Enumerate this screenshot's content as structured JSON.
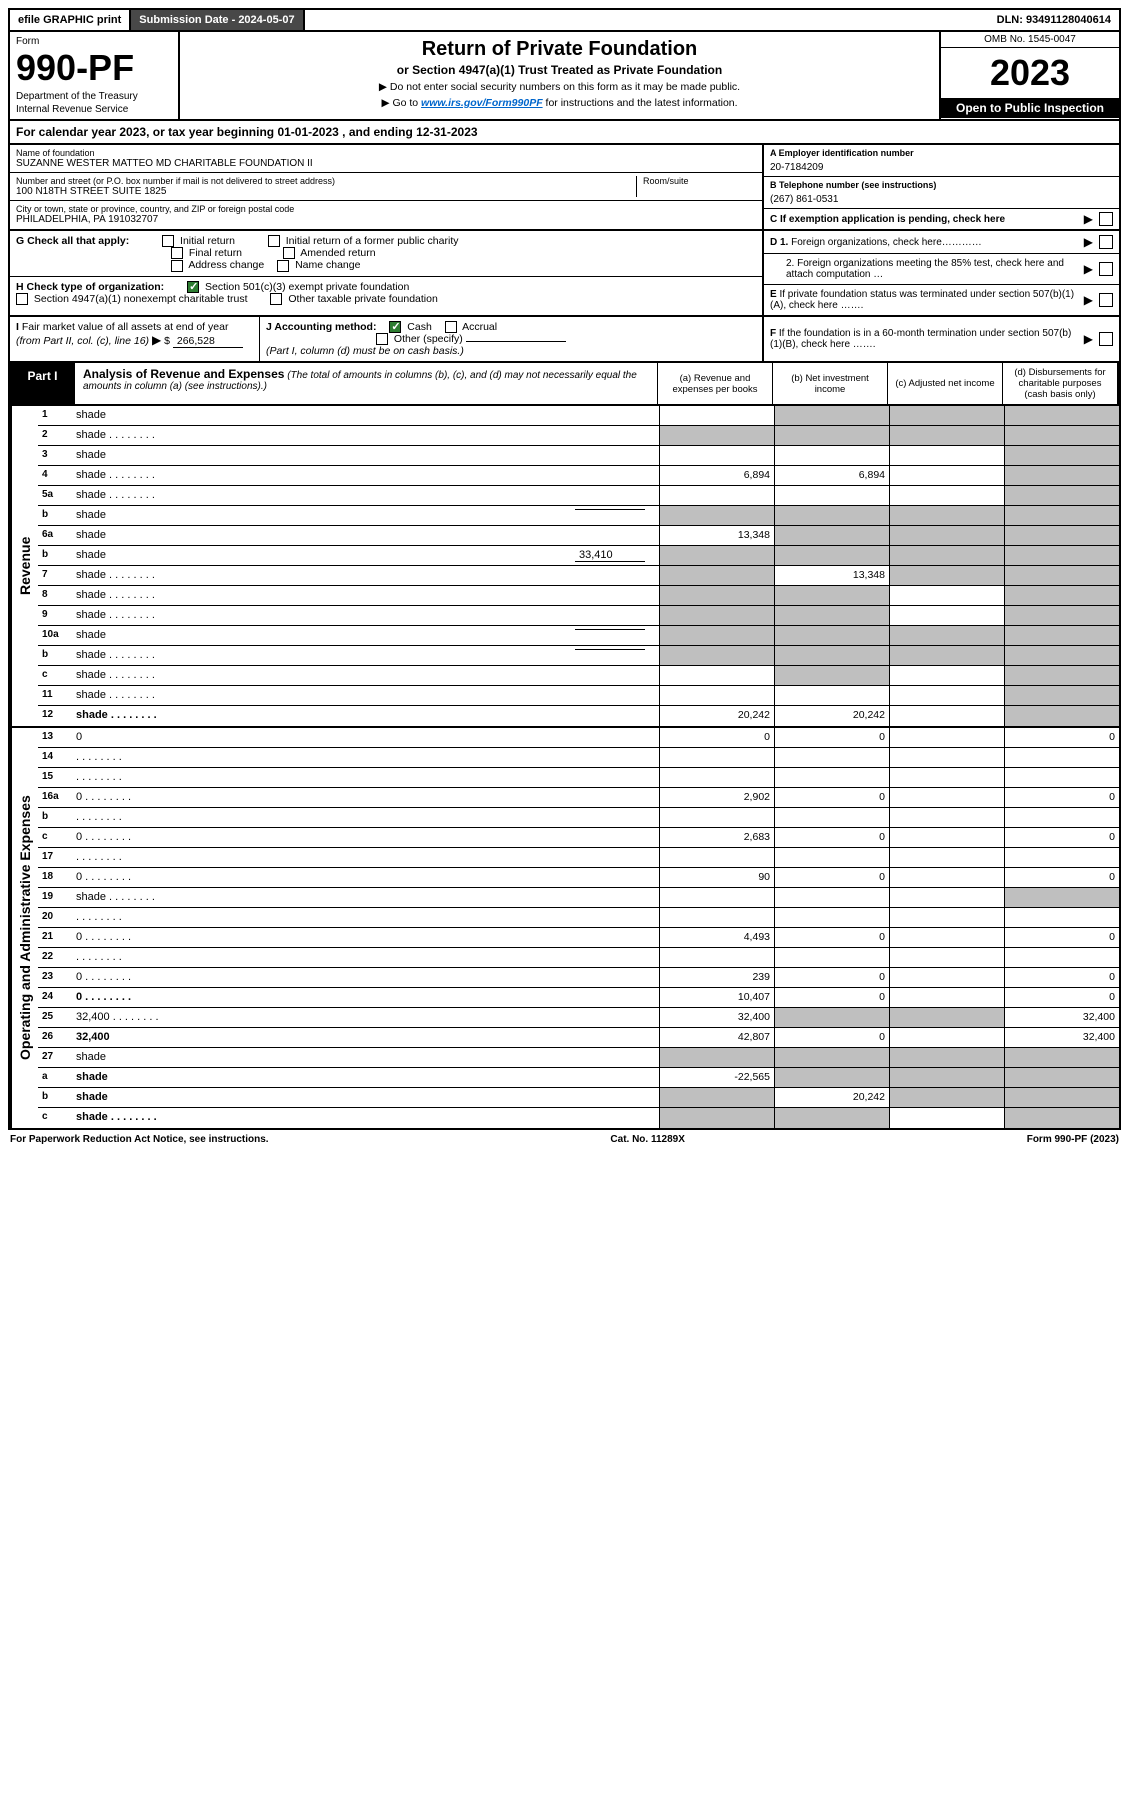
{
  "topbar": {
    "efile": "efile GRAPHIC print",
    "submission_label": "Submission Date - 2024-05-07",
    "dln": "DLN: 93491128040614"
  },
  "header": {
    "form_word": "Form",
    "form_number": "990-PF",
    "dept1": "Department of the Treasury",
    "dept2": "Internal Revenue Service",
    "title": "Return of Private Foundation",
    "subtitle": "or Section 4947(a)(1) Trust Treated as Private Foundation",
    "instr1": "▶ Do not enter social security numbers on this form as it may be made public.",
    "instr2_prefix": "▶ Go to ",
    "instr2_link": "www.irs.gov/Form990PF",
    "instr2_suffix": " for instructions and the latest information.",
    "omb": "OMB No. 1545-0047",
    "year": "2023",
    "open": "Open to Public Inspection"
  },
  "calyear": "For calendar year 2023, or tax year beginning 01-01-2023             , and ending 12-31-2023",
  "org": {
    "name_label": "Name of foundation",
    "name": "SUZANNE WESTER MATTEO MD CHARITABLE FOUNDATION II",
    "addr_label": "Number and street (or P.O. box number if mail is not delivered to street address)",
    "addr": "100 N18TH STREET SUITE 1825",
    "room_label": "Room/suite",
    "city_label": "City or town, state or province, country, and ZIP or foreign postal code",
    "city": "PHILADELPHIA, PA  191032707"
  },
  "ein": {
    "label": "A Employer identification number",
    "value": "20-7184209"
  },
  "phone": {
    "label": "B Telephone number (see instructions)",
    "value": "(267) 861-0531"
  },
  "boxC": "C If exemption application is pending, check here",
  "checkG": {
    "label": "G Check all that apply:",
    "opts": [
      "Initial return",
      "Final return",
      "Address change",
      "Initial return of a former public charity",
      "Amended return",
      "Name change"
    ]
  },
  "boxD": {
    "d1": "D 1. Foreign organizations, check here…………",
    "d2": "2. Foreign organizations meeting the 85% test, check here and attach computation …"
  },
  "checkH": {
    "label": "H Check type of organization:",
    "opt1": "Section 501(c)(3) exempt private foundation",
    "opt2": "Section 4947(a)(1) nonexempt charitable trust",
    "opt3": "Other taxable private foundation"
  },
  "boxE": "E If private foundation status was terminated under section 507(b)(1)(A), check here …….",
  "lineI": {
    "label": "I Fair market value of all assets at end of year (from Part II, col. (c), line 16)",
    "prefix": "▶ $",
    "value": "266,528"
  },
  "lineJ": {
    "label": "J Accounting method:",
    "cash": "Cash",
    "accrual": "Accrual",
    "other": "Other (specify)",
    "note": "(Part I, column (d) must be on cash basis.)"
  },
  "boxF": "F If the foundation is in a 60-month termination under section 507(b)(1)(B), check here …….",
  "part1": {
    "label": "Part I",
    "title": "Analysis of Revenue and Expenses",
    "subtitle": "(The total of amounts in columns (b), (c), and (d) may not necessarily equal the amounts in column (a) (see instructions).)",
    "cols": {
      "a": "(a) Revenue and expenses per books",
      "b": "(b) Net investment income",
      "c": "(c) Adjusted net income",
      "d": "(d) Disbursements for charitable purposes (cash basis only)"
    }
  },
  "sections": {
    "revenue": "Revenue",
    "opex": "Operating and Administrative Expenses"
  },
  "rows": [
    {
      "n": "1",
      "d": "shade",
      "a": "",
      "b": "shade",
      "c": "shade"
    },
    {
      "n": "2",
      "d": "shade",
      "dots": true,
      "a": "shade",
      "b": "shade",
      "c": "shade",
      "checked": true,
      "bold_not": true
    },
    {
      "n": "3",
      "d": "shade",
      "a": "",
      "b": "",
      "c": ""
    },
    {
      "n": "4",
      "d": "shade",
      "dots": true,
      "a": "6,894",
      "b": "6,894",
      "c": ""
    },
    {
      "n": "5a",
      "d": "shade",
      "dots": true,
      "a": "",
      "b": "",
      "c": ""
    },
    {
      "n": "b",
      "d": "shade",
      "inset_val": "",
      "a": "shade",
      "b": "shade",
      "c": "shade"
    },
    {
      "n": "6a",
      "d": "shade",
      "a": "13,348",
      "b": "shade",
      "c": "shade"
    },
    {
      "n": "b",
      "d": "shade",
      "inset_val": "33,410",
      "a": "shade",
      "b": "shade",
      "c": "shade"
    },
    {
      "n": "7",
      "d": "shade",
      "dots": true,
      "a": "shade",
      "b": "13,348",
      "c": "shade"
    },
    {
      "n": "8",
      "d": "shade",
      "dots": true,
      "a": "shade",
      "b": "shade",
      "c": ""
    },
    {
      "n": "9",
      "d": "shade",
      "dots": true,
      "a": "shade",
      "b": "shade",
      "c": ""
    },
    {
      "n": "10a",
      "d": "shade",
      "inset_val": "",
      "a": "shade",
      "b": "shade",
      "c": "shade"
    },
    {
      "n": "b",
      "d": "shade",
      "dots": true,
      "inset_val": "",
      "a": "shade",
      "b": "shade",
      "c": "shade"
    },
    {
      "n": "c",
      "d": "shade",
      "dots": true,
      "a": "",
      "b": "shade",
      "c": ""
    },
    {
      "n": "11",
      "d": "shade",
      "dots": true,
      "a": "",
      "b": "",
      "c": ""
    },
    {
      "n": "12",
      "d": "shade",
      "dots": true,
      "bold": true,
      "a": "20,242",
      "b": "20,242",
      "c": ""
    }
  ],
  "erows": [
    {
      "n": "13",
      "d": "0",
      "a": "0",
      "b": "0",
      "c": ""
    },
    {
      "n": "14",
      "d": "",
      "dots": true,
      "a": "",
      "b": "",
      "c": ""
    },
    {
      "n": "15",
      "d": "",
      "dots": true,
      "a": "",
      "b": "",
      "c": ""
    },
    {
      "n": "16a",
      "d": "0",
      "dots": true,
      "a": "2,902",
      "b": "0",
      "c": ""
    },
    {
      "n": "b",
      "d": "",
      "dots": true,
      "a": "",
      "b": "",
      "c": ""
    },
    {
      "n": "c",
      "d": "0",
      "dots": true,
      "a": "2,683",
      "b": "0",
      "c": ""
    },
    {
      "n": "17",
      "d": "",
      "dots": true,
      "a": "",
      "b": "",
      "c": ""
    },
    {
      "n": "18",
      "d": "0",
      "dots": true,
      "a": "90",
      "b": "0",
      "c": ""
    },
    {
      "n": "19",
      "d": "shade",
      "dots": true,
      "a": "",
      "b": "",
      "c": ""
    },
    {
      "n": "20",
      "d": "",
      "dots": true,
      "a": "",
      "b": "",
      "c": ""
    },
    {
      "n": "21",
      "d": "0",
      "dots": true,
      "a": "4,493",
      "b": "0",
      "c": ""
    },
    {
      "n": "22",
      "d": "",
      "dots": true,
      "a": "",
      "b": "",
      "c": ""
    },
    {
      "n": "23",
      "d": "0",
      "dots": true,
      "a": "239",
      "b": "0",
      "c": ""
    },
    {
      "n": "24",
      "d": "0",
      "dots": true,
      "bold": true,
      "a": "10,407",
      "b": "0",
      "c": ""
    },
    {
      "n": "25",
      "d": "32,400",
      "dots": true,
      "a": "32,400",
      "b": "shade",
      "c": "shade"
    },
    {
      "n": "26",
      "d": "32,400",
      "bold": true,
      "a": "42,807",
      "b": "0",
      "c": ""
    },
    {
      "n": "27",
      "d": "shade",
      "a": "shade",
      "b": "shade",
      "c": "shade"
    },
    {
      "n": "a",
      "d": "shade",
      "bold": true,
      "a": "-22,565",
      "b": "shade",
      "c": "shade"
    },
    {
      "n": "b",
      "d": "shade",
      "bold": true,
      "a": "shade",
      "b": "20,242",
      "c": "shade"
    },
    {
      "n": "c",
      "d": "shade",
      "dots": true,
      "bold": true,
      "a": "shade",
      "b": "shade",
      "c": ""
    }
  ],
  "footer": {
    "left": "For Paperwork Reduction Act Notice, see instructions.",
    "mid": "Cat. No. 11289X",
    "right": "Form 990-PF (2023)"
  }
}
